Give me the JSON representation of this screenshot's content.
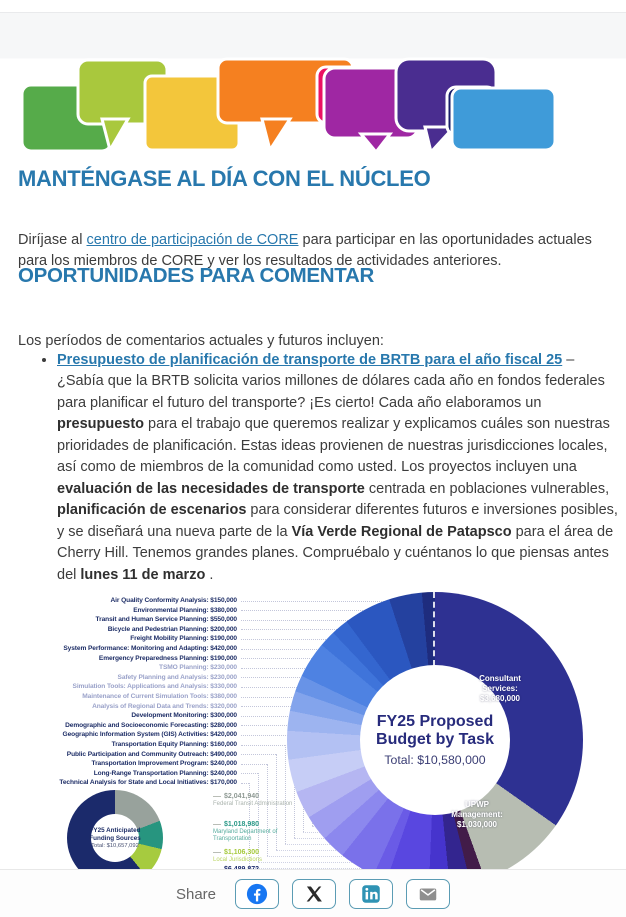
{
  "page": {
    "accent_blue": "#2878ad",
    "body_text_color": "#3c3c3c",
    "background": "#ffffff"
  },
  "illustration": {
    "description": "row of colorful speech bubbles",
    "colors": [
      "#56ab4a",
      "#a9c83d",
      "#f3c63b",
      "#f58020",
      "#eb1163",
      "#9f27a3",
      "#4a2d90",
      "#181d6b",
      "#3f9bd9"
    ]
  },
  "main": {
    "title1": "MANTÉNGASE AL DÍA CON EL NÚCLEO",
    "intro": {
      "segments": [
        {
          "text": "Diríjase al ",
          "style": "plain"
        },
        {
          "text": "centro de participación de CORE",
          "style": "link",
          "name": "core-participation-hub-link"
        },
        {
          "text": " para participar en las oportunidades actuales para los miembros de CORE y ver los resultados de actividades anteriores.",
          "style": "plain"
        }
      ]
    },
    "title2": "OPORTUNIDADES PARA COMENTAR",
    "periods_line": "Los períodos de comentarios actuales y futuros incluyen:",
    "bullet": {
      "segments": [
        {
          "text": "Presupuesto de planificación de transporte de BRTB para el año fiscal 25",
          "style": "bold-link",
          "name": "fy25-budget-link"
        },
        {
          "text": " – ¿Sabía que la BRTB solicita varios millones de dólares cada año en fondos federales para planificar el futuro del transporte? ¡Es cierto! Cada año elaboramos un ",
          "style": "plain"
        },
        {
          "text": "presupuesto",
          "style": "bold"
        },
        {
          "text": " para el trabajo que queremos realizar y explicamos cuáles son nuestras prioridades de planificación. Estas ideas provienen de nuestras jurisdicciones locales, así como de miembros de la comunidad como usted. Los proyectos incluyen una ",
          "style": "plain"
        },
        {
          "text": "evaluación de las necesidades de transporte",
          "style": "bold"
        },
        {
          "text": " centrada en poblaciones vulnerables, ",
          "style": "plain"
        },
        {
          "text": "planificación de escenarios",
          "style": "bold"
        },
        {
          "text": " para considerar diferentes futuros e inversiones posibles, y se diseñará una nueva parte de la ",
          "style": "plain"
        },
        {
          "text": "Vía Verde Regional de Patapsco",
          "style": "bold"
        },
        {
          "text": " para el área de Cherry Hill. Tenemos grandes planes. Compruébalo y cuéntanos lo que piensas antes del ",
          "style": "plain"
        },
        {
          "text": "lunes 11 de marzo",
          "style": "bold"
        },
        {
          "text": " .",
          "style": "plain"
        }
      ]
    }
  },
  "chart_data": [
    {
      "type": "pie",
      "title": "FY25 Proposed Budget by Task",
      "total_label": "Total: $10,580,000",
      "total": 10580000,
      "legend_position": "left-labels",
      "tasks": [
        {
          "label": "Air Quality Conformity Analysis",
          "value": 150000,
          "display": "$150,000",
          "color": "#1e2c7e"
        },
        {
          "label": "Environmental Planning",
          "value": 380000,
          "display": "$380,000",
          "color": "#24419f"
        },
        {
          "label": "Transit and Human Service Planning",
          "value": 550000,
          "display": "$550,000",
          "color": "#2b57c0"
        },
        {
          "label": "Bicycle and Pedestrian Planning",
          "value": 200000,
          "display": "$200,000",
          "color": "#3466cf"
        },
        {
          "label": "Freight Mobility Planning",
          "value": 190000,
          "display": "$190,000",
          "color": "#3f74da"
        },
        {
          "label": "System Performance: Monitoring and Adapting",
          "value": 420000,
          "display": "$420,000",
          "color": "#4e82e2"
        },
        {
          "label": "Emergency Preparedness Planning",
          "value": 190000,
          "display": "$190,000",
          "color": "#6893e7"
        },
        {
          "label": "TSMO Planning",
          "value": 230000,
          "display": "$230,000",
          "color": "#83a4ec",
          "muted": true
        },
        {
          "label": "Safety Planning and Analysis",
          "value": 230000,
          "display": "$230,000",
          "color": "#9db4f0",
          "muted": true
        },
        {
          "label": "Simulation Tools: Applications and Analysis",
          "value": 330000,
          "display": "$330,000",
          "color": "#b3c1f3",
          "muted": true
        },
        {
          "label": "Maintenance of Current Simulation Tools",
          "value": 380000,
          "display": "$380,000",
          "color": "#c6cdf6",
          "muted": true
        },
        {
          "label": "Analysis of Regional Data and Trends",
          "value": 320000,
          "display": "$320,000",
          "color": "#b5b6f2",
          "muted": true
        },
        {
          "label": "Development Monitoring",
          "value": 300000,
          "display": "$300,000",
          "color": "#9f9ef0"
        },
        {
          "label": "Demographic and Socioeconomic Forecasting",
          "value": 280000,
          "display": "$280,000",
          "color": "#8c88ee"
        },
        {
          "label": "Geographic Information System (GIS) Activities",
          "value": 420000,
          "display": "$420,000",
          "color": "#7a71ea"
        },
        {
          "label": "Transportation Equity Planning",
          "value": 160000,
          "display": "$160,000",
          "color": "#6a5be6"
        },
        {
          "label": "Public Participation and Community Outreach",
          "value": 490000,
          "display": "$490,000",
          "color": "#5947e0"
        },
        {
          "label": "Transportation Improvement Program",
          "value": 240000,
          "display": "$240,000",
          "color": "#4634cd"
        },
        {
          "label": "Long-Range Transportation Planning",
          "value": 240000,
          "display": "$240,000",
          "color": "#33258f"
        },
        {
          "label": "Technical Analysis for State and Local Initiatives",
          "value": 170000,
          "display": "$170,000",
          "color": "#421c49"
        }
      ],
      "big_slices": [
        {
          "label": "Consultant Services",
          "value": 3680000,
          "display": "$3,680,000",
          "color": "#2e3192",
          "text_lines": [
            "Consultant",
            "Services:",
            "$3,680,000"
          ]
        },
        {
          "label": "UPWP Management",
          "value": 1030000,
          "display": "$1,030,000",
          "color": "#b7bdb2",
          "text_lines": [
            "UPWP",
            "Management:",
            "$1,030,000"
          ]
        }
      ]
    },
    {
      "type": "pie",
      "title": "FY25 Anticipated Funding Sources",
      "total_label": "Total: $10,657,092",
      "total": 10657092,
      "slices": [
        {
          "label": "Federal Transit Administration",
          "value": 2041940,
          "display": "$2,041,940",
          "color": "#98a29c",
          "label_color": "#8f9a94",
          "name_color": "#aab3ad"
        },
        {
          "label": "Maryland Department of Transportation",
          "value": 1018980,
          "display": "$1,018,980",
          "color": "#27957f",
          "label_color": "#2a9887",
          "name_color": "#55ab9d"
        },
        {
          "label": "Local Jurisdictions",
          "value": 1106300,
          "display": "$1,106,300",
          "color": "#a6cb3f",
          "label_color": "#a5c93b",
          "name_color": "#b9d45f"
        },
        {
          "label": "",
          "value": 6489872,
          "display": "$6,489,872",
          "color": "#1b2a6b",
          "label_color": "#1b2a6b",
          "name_color": "#1b2a6b",
          "clipped": true
        }
      ]
    }
  ],
  "share": {
    "label": "Share",
    "buttons": [
      "facebook",
      "x",
      "linkedin",
      "email"
    ]
  }
}
